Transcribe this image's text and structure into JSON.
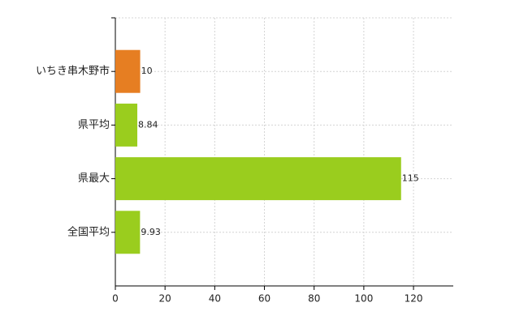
{
  "chart_data": {
    "type": "bar",
    "orientation": "horizontal",
    "categories": [
      "いちき串木野市",
      "県平均",
      "県最大",
      "全国平均"
    ],
    "values": [
      10,
      8.84,
      115,
      9.93
    ],
    "colors": [
      "#e67e22",
      "#9acd1e",
      "#9acd1e",
      "#9acd1e"
    ],
    "xlim": [
      0,
      136
    ],
    "xticks": [
      0,
      20,
      40,
      60,
      80,
      100,
      120
    ],
    "grid": true
  }
}
